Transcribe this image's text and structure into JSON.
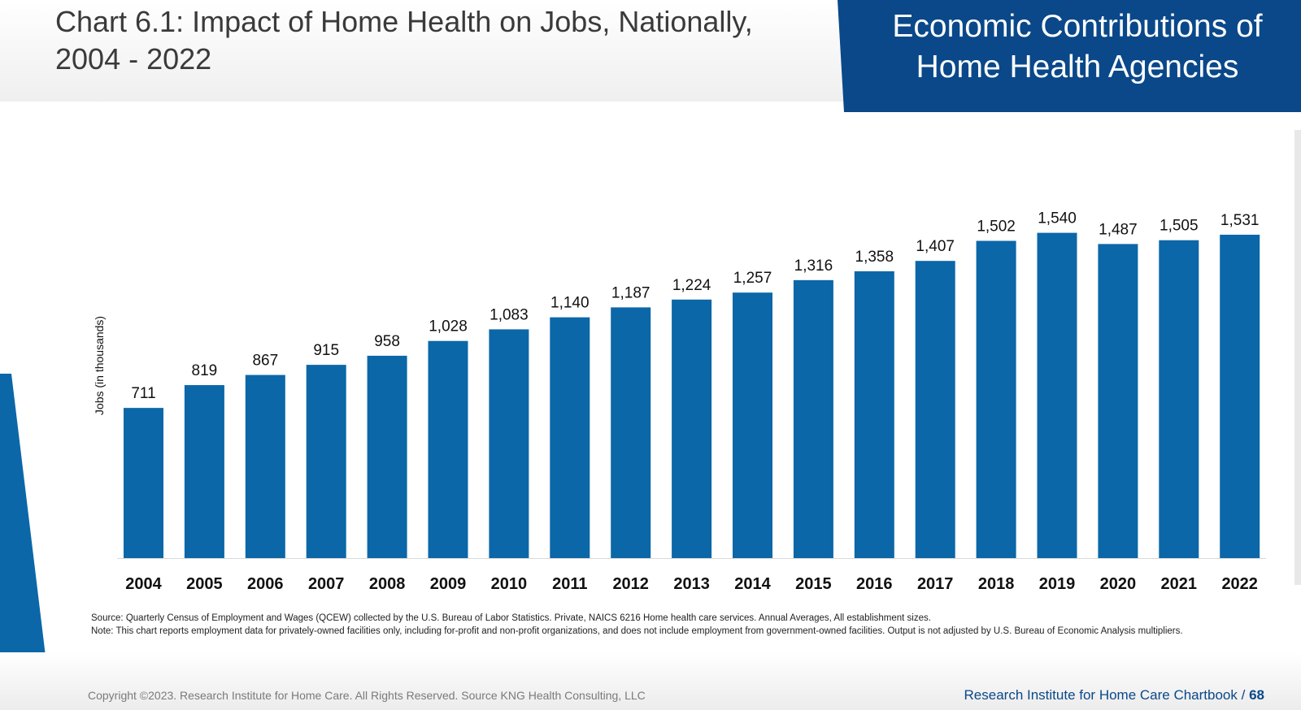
{
  "header": {
    "chart_title_line1": "Chart 6.1: Impact of Home Health on Jobs, Nationally,",
    "chart_title_line2": "2004 - 2022",
    "banner_line1": "Economic Contributions of",
    "banner_line2": "Home Health Agencies"
  },
  "chart_data": {
    "type": "bar",
    "title": "Chart 6.1: Impact of Home Health on Jobs, Nationally, 2004 - 2022",
    "xlabel": "",
    "ylabel": "Jobs (in thousands)",
    "categories": [
      "2004",
      "2005",
      "2006",
      "2007",
      "2008",
      "2009",
      "2010",
      "2011",
      "2012",
      "2013",
      "2014",
      "2015",
      "2016",
      "2017",
      "2018",
      "2019",
      "2020",
      "2021",
      "2022"
    ],
    "values": [
      711,
      819,
      867,
      915,
      958,
      1028,
      1083,
      1140,
      1187,
      1224,
      1257,
      1316,
      1358,
      1407,
      1502,
      1540,
      1487,
      1505,
      1531
    ],
    "value_labels": [
      "711",
      "819",
      "867",
      "915",
      "958",
      "1,028",
      "1,083",
      "1,140",
      "1,187",
      "1,224",
      "1,257",
      "1,316",
      "1,358",
      "1,407",
      "1,502",
      "1,540",
      "1,487",
      "1,505",
      "1,531"
    ],
    "ylim": [
      0,
      1600
    ],
    "grid": false,
    "bar_color": "#0b67a8"
  },
  "notes": {
    "source": "Source: Quarterly Census of Employment and Wages (QCEW) collected by the U.S. Bureau of Labor Statistics. Private, NAICS 6216 Home health care services. Annual Averages, All establishment sizes.",
    "note": "Note: This chart reports employment data for privately-owned facilities only, including for-profit and non-profit organizations, and does not include employment from government-owned facilities. Output is not adjusted by U.S. Bureau of Economic Analysis multipliers."
  },
  "footer": {
    "copyright": "Copyright ©2023. Research Institute for Home Care. All Rights Reserved. Source KNG Health Consulting, LLC",
    "chartbook_label": "Research Institute for Home Care Chartbook /",
    "page_number": "68"
  }
}
